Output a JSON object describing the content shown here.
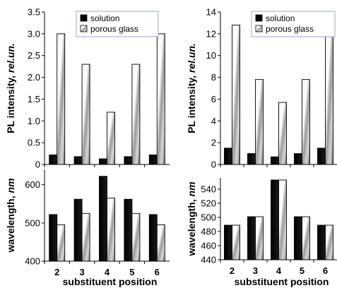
{
  "colors": {
    "solution": "#000000",
    "porous_glass": "gradient-grey"
  },
  "chart_data": [
    {
      "id": "left-top",
      "type": "bar",
      "categories": [
        "2",
        "3",
        "4",
        "5",
        "6"
      ],
      "series": [
        {
          "name": "solution",
          "values": [
            0.22,
            0.18,
            0.13,
            0.18,
            0.22
          ]
        },
        {
          "name": "porous glass",
          "values": [
            3.0,
            2.3,
            1.2,
            2.3,
            3.0
          ]
        }
      ],
      "ylabel_main": "PL intensity, ",
      "ylabel_unit": "rel.un.",
      "ylim": [
        0,
        3.5
      ],
      "yticks": [
        "0",
        "0.5",
        "1.0",
        "1.5",
        "2.0",
        "2.5",
        "3.0",
        "3.5"
      ],
      "legend": "top-center"
    },
    {
      "id": "right-top",
      "type": "bar",
      "categories": [
        "2",
        "3",
        "4",
        "5",
        "6"
      ],
      "series": [
        {
          "name": "solution",
          "values": [
            1.5,
            1.0,
            0.7,
            1.0,
            1.5
          ]
        },
        {
          "name": "porous glass",
          "values": [
            12.8,
            7.8,
            5.7,
            7.8,
            12.8
          ]
        }
      ],
      "ylabel_main": "PL intensity, ",
      "ylabel_unit": "rel.un.",
      "ylim": [
        0,
        14
      ],
      "yticks": [
        "0",
        "2",
        "4",
        "6",
        "8",
        "10",
        "12",
        "14"
      ],
      "legend": "top-center"
    },
    {
      "id": "left-bottom",
      "type": "bar",
      "categories": [
        "2",
        "3",
        "4",
        "5",
        "6"
      ],
      "series": [
        {
          "name": "solution",
          "values": [
            522,
            562,
            622,
            562,
            522
          ]
        },
        {
          "name": "porous glass",
          "values": [
            495,
            525,
            565,
            525,
            495
          ]
        }
      ],
      "xlabel": "substituent position",
      "ylabel_main": "wavelength, ",
      "ylabel_unit": "nm",
      "ylim": [
        400,
        640
      ],
      "yticks": [
        "400",
        "500",
        "600"
      ]
    },
    {
      "id": "right-bottom",
      "type": "bar",
      "categories": [
        "2",
        "3",
        "4",
        "5",
        "6"
      ],
      "series": [
        {
          "name": "solution",
          "values": [
            489,
            501,
            553,
            501,
            489
          ]
        },
        {
          "name": "porous glass",
          "values": [
            489,
            501,
            553,
            501,
            489
          ]
        }
      ],
      "xlabel": "substituent position",
      "ylabel_main": "wavelength, ",
      "ylabel_unit": "nm",
      "ylim": [
        440,
        556
      ],
      "yticks": [
        "440",
        "460",
        "480",
        "500",
        "520",
        "540"
      ]
    }
  ]
}
